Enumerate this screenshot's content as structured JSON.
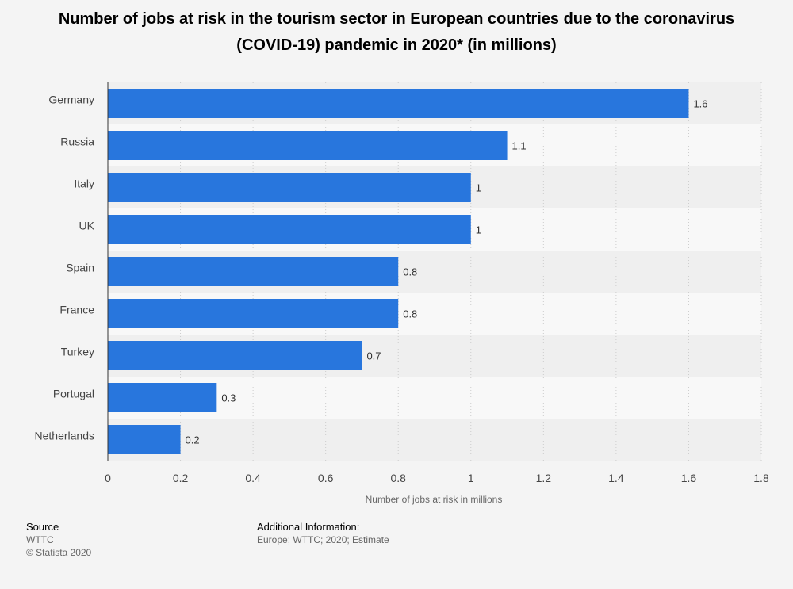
{
  "chart_data": {
    "type": "bar",
    "orientation": "horizontal",
    "title": "Number of jobs at risk in the tourism sector in European countries due to the coronavirus (COVID-19) pandemic in 2020* (in millions)",
    "categories": [
      "Germany",
      "Russia",
      "Italy",
      "UK",
      "Spain",
      "France",
      "Turkey",
      "Portugal",
      "Netherlands"
    ],
    "values": [
      1.6,
      1.1,
      1,
      1,
      0.8,
      0.8,
      0.7,
      0.3,
      0.2
    ],
    "value_labels": [
      "1.6",
      "1.1",
      "1",
      "1",
      "0.8",
      "0.8",
      "0.7",
      "0.3",
      "0.2"
    ],
    "xlabel": "Number of jobs at risk in millions",
    "ylabel": "",
    "xlim": [
      0,
      1.8
    ],
    "xticks": [
      0,
      0.2,
      0.4,
      0.6,
      0.8,
      1,
      1.2,
      1.4,
      1.6,
      1.8
    ],
    "xtick_labels": [
      "0",
      "0.2",
      "0.4",
      "0.6",
      "0.8",
      "1",
      "1.2",
      "1.4",
      "1.6",
      "1.8"
    ],
    "grid": true,
    "colors": {
      "bar": "#2876dd",
      "band_dark": "#efefef",
      "band_light": "#f8f8f8",
      "grid": "#cccccc"
    }
  },
  "footer": {
    "source_heading": "Source",
    "source_text": "WTTC",
    "copyright": "© Statista 2020",
    "additional_heading": "Additional Information:",
    "additional_text": "Europe; WTTC; 2020; Estimate"
  }
}
